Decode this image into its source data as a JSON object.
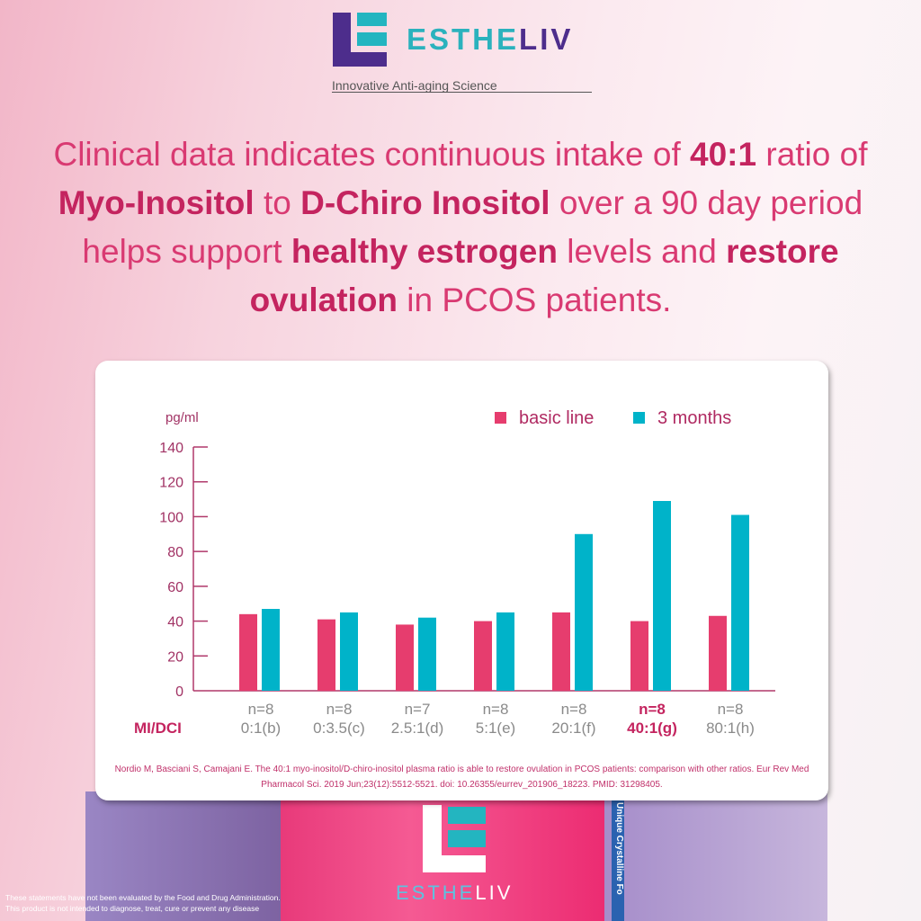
{
  "brand": {
    "name_part1": "ESTHE",
    "name_part2": "LIV",
    "tagline": "Innovative Anti-aging Science"
  },
  "headline": {
    "segments": [
      {
        "t": "Clinical data indicates continuous intake of ",
        "b": false
      },
      {
        "t": "40:1",
        "b": true
      },
      {
        "t": " ratio of ",
        "b": false
      },
      {
        "t": "Myo-Inositol",
        "b": true
      },
      {
        "t": " to ",
        "b": false
      },
      {
        "t": "D-Chiro Inositol",
        "b": true
      },
      {
        "t": " over a 90 day period helps support ",
        "b": false
      },
      {
        "t": "healthy estrogen",
        "b": true
      },
      {
        "t": " levels and ",
        "b": false
      },
      {
        "t": "restore ovulation",
        "b": true
      },
      {
        "t": " in PCOS patients.",
        "b": false
      }
    ]
  },
  "chart_data": {
    "type": "bar",
    "ylabel": "pg/ml",
    "ylim": [
      0,
      140
    ],
    "yticks": [
      0,
      20,
      40,
      60,
      80,
      100,
      120,
      140
    ],
    "grid": false,
    "legend_placement": "top-right",
    "xaxis_row_label": "MI/DCI",
    "categories": [
      "0:1(b)",
      "0:3.5(c)",
      "2.5:1(d)",
      "5:1(e)",
      "20:1(f)",
      "40:1(g)",
      "80:1(h)"
    ],
    "n_labels": [
      "n=8",
      "n=8",
      "n=7",
      "n=8",
      "n=8",
      "n=8",
      "n=8"
    ],
    "highlighted_category": "40:1(g)",
    "series": [
      {
        "name": "basic line",
        "color": "#e63d6e",
        "values": [
          44,
          41,
          38,
          40,
          45,
          40,
          43
        ]
      },
      {
        "name": "3 months",
        "color": "#00b3c9",
        "values": [
          47,
          45,
          42,
          45,
          90,
          109,
          101
        ]
      }
    ],
    "citation": "Nordio M, Basciani S, Camajani E. The 40:1 myo-inositol/D-chiro-inositol plasma ratio is able to restore ovulation in PCOS patients: comparison with other ratios. Eur Rev Med Pharmacol Sci. 2019 Jun;23(12):5512-5521. doi: 10.26355/eurrev_201906_18223. PMID: 31298405."
  },
  "product": {
    "side_text": "Unique Crystalline Fo",
    "brand_part1": "ESTHE",
    "brand_part2": "LIV"
  },
  "disclaimer": {
    "line1": "These statements have not been evaluated by the Food and Drug Administration.",
    "line2": "This product is not intended to diagnose, treat, cure or prevent any disease"
  }
}
